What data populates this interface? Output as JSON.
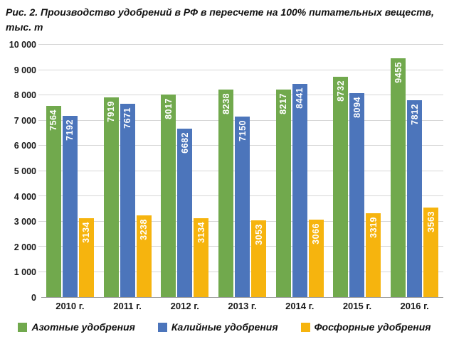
{
  "chart_data": {
    "type": "bar",
    "title_prefix": "Рис. 2.",
    "title": "Производство удобрений в РФ в пересчете на 100% питательных веществ, тыс. т",
    "categories": [
      "2010 г.",
      "2011 г.",
      "2012 г.",
      "2013 г.",
      "2014 г.",
      "2015 г.",
      "2016 г."
    ],
    "series": [
      {
        "name": "Азотные удобрения",
        "color": "#71A94D",
        "values": [
          7564,
          7919,
          8017,
          8238,
          8217,
          8732,
          9455
        ]
      },
      {
        "name": "Калийные удобрения",
        "color": "#4C75BB",
        "values": [
          7192,
          7671,
          6682,
          7150,
          8441,
          8094,
          7812
        ]
      },
      {
        "name": "Фосфорные удобрения",
        "color": "#F6B40E",
        "values": [
          3134,
          3238,
          3134,
          3053,
          3066,
          3319,
          3563
        ]
      }
    ],
    "ylim": [
      0,
      10000
    ],
    "ytick_step": 1000,
    "ytick_labels": [
      "0",
      "1 000",
      "2 000",
      "3 000",
      "4 000",
      "5 000",
      "6 000",
      "7 000",
      "8 000",
      "9 000",
      "10 000"
    ],
    "grid": true,
    "bar_value_labels": "white, rotated 90°, inside top of bar",
    "legend_position": "bottom"
  }
}
